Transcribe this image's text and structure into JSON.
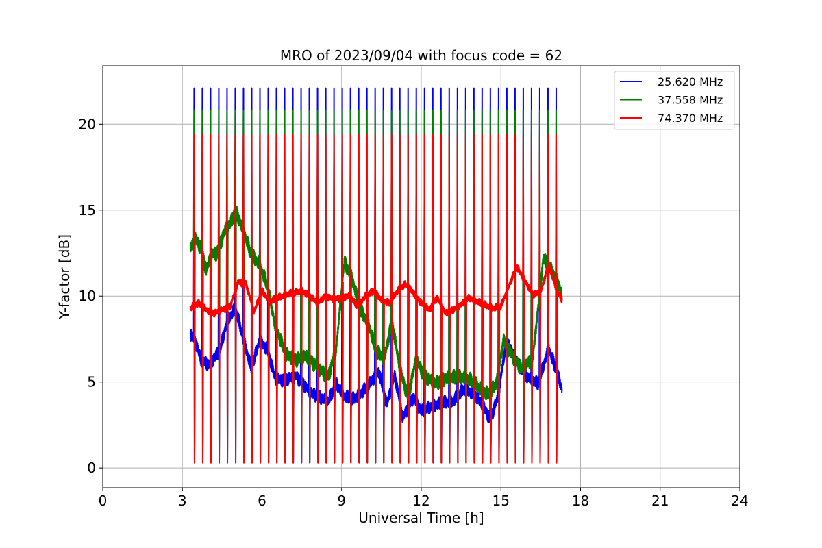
{
  "chart_data": {
    "type": "line",
    "title": "MRO of 2023/09/04 with focus code = 62",
    "xlabel": "Universal Time [h]",
    "ylabel": "Y-factor [dB]",
    "xlim": [
      0,
      24
    ],
    "ylim": [
      -1.15,
      23.4
    ],
    "xticks": [
      0,
      3,
      6,
      9,
      12,
      15,
      18,
      21,
      24
    ],
    "yticks": [
      0,
      5,
      10,
      15,
      20
    ],
    "grid": true,
    "legend_position": "top-right",
    "pulse": {
      "start": 3.45,
      "end": 17.3,
      "interval": 0.31,
      "width": 0.05
    },
    "series": [
      {
        "name": "25.620 MHz",
        "color": "#0000ff",
        "peak": 22.1,
        "floor": 0.3,
        "x": [
          3.3,
          3.5,
          3.7,
          4.0,
          4.4,
          4.7,
          5.0,
          5.3,
          5.6,
          5.9,
          6.2,
          6.5,
          6.8,
          7.0,
          7.3,
          7.6,
          7.9,
          8.2,
          8.5,
          8.8,
          9.1,
          9.4,
          9.7,
          10.0,
          10.4,
          10.7,
          11.0,
          11.3,
          11.7,
          12.0,
          12.4,
          12.8,
          13.2,
          13.6,
          14.0,
          14.3,
          14.6,
          14.9,
          15.2,
          15.6,
          16.0,
          16.4,
          16.8,
          17.1,
          17.3
        ],
        "values": [
          7.8,
          7.3,
          6.3,
          6.0,
          6.8,
          8.6,
          9.3,
          7.5,
          5.8,
          7.4,
          6.9,
          5.2,
          5.1,
          5.2,
          5.3,
          4.8,
          4.3,
          4.1,
          3.9,
          4.9,
          4.2,
          4.0,
          4.3,
          4.8,
          5.6,
          3.7,
          5.4,
          2.9,
          4.1,
          3.3,
          3.6,
          3.8,
          3.9,
          4.6,
          4.3,
          3.7,
          2.8,
          4.2,
          7.4,
          6.2,
          5.3,
          4.9,
          7.0,
          5.6,
          4.6
        ]
      },
      {
        "name": "37.558 MHz",
        "color": "#008000",
        "peak": 20.8,
        "floor": 0.3,
        "x": [
          3.3,
          3.5,
          3.7,
          3.9,
          4.1,
          4.3,
          4.6,
          4.8,
          5.0,
          5.3,
          5.6,
          5.9,
          6.2,
          6.5,
          6.9,
          7.3,
          7.7,
          8.1,
          8.5,
          8.8,
          9.1,
          9.4,
          9.7,
          10.0,
          10.3,
          10.6,
          10.9,
          11.2,
          11.5,
          11.8,
          12.1,
          12.5,
          12.9,
          13.3,
          13.7,
          14.1,
          14.5,
          14.8,
          15.1,
          15.4,
          15.8,
          16.2,
          16.6,
          16.9,
          17.2,
          17.3
        ],
        "values": [
          12.8,
          13.3,
          12.8,
          11.5,
          12.4,
          12.5,
          13.8,
          14.2,
          15.0,
          13.8,
          12.4,
          11.9,
          10.6,
          8.3,
          6.6,
          6.3,
          6.5,
          5.8,
          5.3,
          7.0,
          12.0,
          11.0,
          9.2,
          8.5,
          6.8,
          6.4,
          8.5,
          5.7,
          4.1,
          6.3,
          5.4,
          4.9,
          5.2,
          5.3,
          5.3,
          4.8,
          4.3,
          4.8,
          7.4,
          6.6,
          5.7,
          6.4,
          12.2,
          11.5,
          10.6,
          10.0
        ]
      },
      {
        "name": "74.370 MHz",
        "color": "#ff0000",
        "peak": 19.4,
        "floor": 0.3,
        "x": [
          3.3,
          3.6,
          3.9,
          4.2,
          4.5,
          4.8,
          5.1,
          5.4,
          5.7,
          6.0,
          6.3,
          6.6,
          6.9,
          7.2,
          7.5,
          7.8,
          8.1,
          8.4,
          8.7,
          9.0,
          9.3,
          9.6,
          9.9,
          10.2,
          10.5,
          10.8,
          11.1,
          11.4,
          11.7,
          12.0,
          12.3,
          12.6,
          12.9,
          13.2,
          13.5,
          13.8,
          14.1,
          14.4,
          14.7,
          15.0,
          15.3,
          15.6,
          15.9,
          16.2,
          16.5,
          16.8,
          17.1,
          17.3
        ],
        "values": [
          9.3,
          9.6,
          9.2,
          9.0,
          9.2,
          9.4,
          10.8,
          10.7,
          9.1,
          10.3,
          9.7,
          9.9,
          10.1,
          10.2,
          10.3,
          10.0,
          9.6,
          10.0,
          9.8,
          9.9,
          10.0,
          9.4,
          10.0,
          10.3,
          9.8,
          9.6,
          10.3,
          10.7,
          10.2,
          9.6,
          9.2,
          9.9,
          9.0,
          9.2,
          9.5,
          9.9,
          9.7,
          9.5,
          9.3,
          9.4,
          10.6,
          11.7,
          10.9,
          10.1,
          10.2,
          11.9,
          10.3,
          9.8
        ]
      }
    ]
  }
}
